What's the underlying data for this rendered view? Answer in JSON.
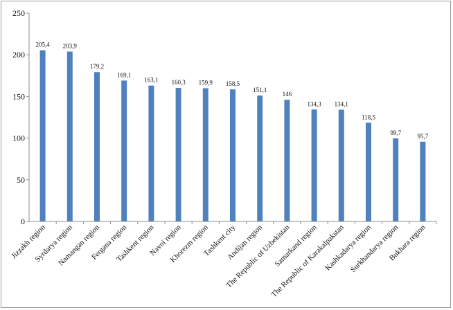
{
  "chart_data": {
    "type": "bar",
    "title": "",
    "xlabel": "",
    "ylabel": "",
    "ylim": [
      0,
      250
    ],
    "yticks": [
      0,
      50,
      100,
      150,
      200,
      250
    ],
    "grid": false,
    "legend": "none",
    "bar_color": "#4f81bd",
    "categories": [
      "Jizzakh region",
      "Syrdarya region",
      "Namangan region",
      "Fergana region",
      "Tashkent region",
      "Navoi region",
      "Khorezm region",
      "Tashkent city",
      "Andijan region",
      "The Republic of Uzbekistan",
      "Samarkand region",
      "The Republic of Karakalpakstan",
      "Kashkadarya region",
      "Surkhandarya region",
      "Bukhara region"
    ],
    "values": [
      205.4,
      203.9,
      179.2,
      169.1,
      163.1,
      160.3,
      159.9,
      158.5,
      151.1,
      146,
      134.3,
      134.1,
      118.5,
      99.7,
      95.7
    ],
    "value_labels": [
      "205,4",
      "203,9",
      "179,2",
      "169,1",
      "163,1",
      "160,3",
      "159,9",
      "158,5",
      "151,1",
      "146",
      "134,3",
      "134,1",
      "118,5",
      "99,7",
      "95,7"
    ]
  }
}
